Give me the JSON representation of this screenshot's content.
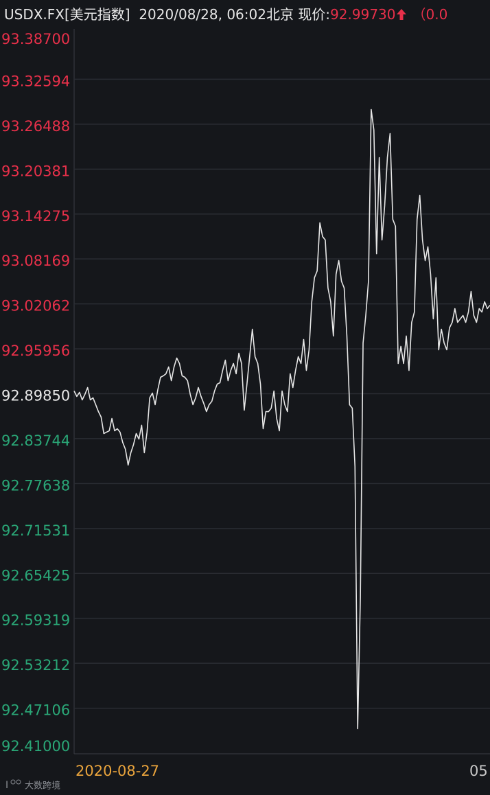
{
  "chart_data": {
    "type": "line",
    "title": "USDX.FX[美元指数]",
    "subtitle": "2020/08/28, 06:02北京",
    "price_label": "现价:",
    "price": "92.99730",
    "change": "（0.0",
    "color": "#e6e6e6",
    "values": [
      92.9022,
      92.8948,
      92.9004,
      92.8901,
      92.8976,
      92.9069,
      92.8901,
      92.8929,
      92.8836,
      92.8742,
      92.8668,
      92.8444,
      92.8463,
      92.8481,
      92.8649,
      92.8481,
      92.8509,
      92.8463,
      92.8323,
      92.8229,
      92.8015,
      92.8183,
      92.8295,
      92.8444,
      92.8369,
      92.8556,
      92.8183,
      92.8463,
      92.8929,
      92.8994,
      92.8836,
      92.9041,
      92.9209,
      92.9228,
      92.9256,
      92.9349,
      92.9162,
      92.9349,
      92.947,
      92.9396,
      92.9228,
      92.9209,
      92.9162,
      92.8976,
      92.8836,
      92.8929,
      92.9069,
      92.8948,
      92.8854,
      92.8742,
      92.8836,
      92.8882,
      92.9022,
      92.9116,
      92.9134,
      92.9302,
      92.9442,
      92.9162,
      92.9302,
      92.9396,
      92.9256,
      92.9535,
      92.9396,
      92.8761,
      92.9116,
      92.9489,
      92.9862,
      92.9489,
      92.9396,
      92.9116,
      92.8509,
      92.8742,
      92.8742,
      92.8789,
      92.9022,
      92.8649,
      92.8481,
      92.9022,
      92.8836,
      92.8742,
      92.9256,
      92.9069,
      92.9302,
      92.9489,
      92.9396,
      92.9722,
      92.9302,
      92.9582,
      93.0235,
      93.0562,
      93.0655,
      93.1308,
      93.1122,
      93.1075,
      93.0422,
      93.0235,
      92.9769,
      93.0609,
      93.0795,
      93.0515,
      93.0422,
      92.9769,
      92.8836,
      92.8789,
      92.7996,
      92.4432,
      92.6223,
      92.9675,
      93.0049,
      93.0515,
      93.2848,
      93.2568,
      93.0888,
      93.2195,
      93.1075,
      93.1541,
      93.2195,
      93.2521,
      93.1355,
      93.1262,
      92.9396,
      92.9629,
      92.9396,
      92.9769,
      92.9302,
      92.9955,
      93.0095,
      93.1355,
      93.1681,
      93.1075,
      93.0795,
      93.0982,
      93.0609,
      93.0002,
      93.0562,
      92.9582,
      92.9862,
      92.9676,
      92.9582,
      92.9881,
      92.9955,
      93.0142,
      92.9955,
      93.0002,
      93.0049,
      92.9955,
      93.0095,
      93.0375,
      93.0049,
      92.9955,
      93.0142,
      93.0095,
      93.0235,
      93.0142,
      93.0189
    ],
    "ylim": [
      92.41,
      93.387
    ],
    "yticks": [
      {
        "value": 93.387,
        "label": "93.38700"
      },
      93.32594,
      93.26488,
      93.20381,
      93.14275,
      93.08169,
      93.02062,
      92.95956,
      {
        "value": 92.8985,
        "label": "92.89850"
      },
      92.83744,
      92.77638,
      92.71531,
      92.65425,
      92.59319,
      92.53212,
      92.47106,
      {
        "value": 92.41,
        "label": "92.41000"
      }
    ],
    "ytick_colors": [
      "#e8304a",
      "#e8304a",
      "#e8304a",
      "#e8304a",
      "#e8304a",
      "#e8304a",
      "#e8304a",
      "#e8304a",
      "#e8e8e8",
      "#2aa777",
      "#2aa777",
      "#2aa777",
      "#2aa777",
      "#2aa777",
      "#2aa777",
      "#2aa777",
      "#2aa777"
    ],
    "grid": true,
    "x_labels": [
      "2020-08-27",
      "05"
    ],
    "watermark": "大数跨境"
  }
}
